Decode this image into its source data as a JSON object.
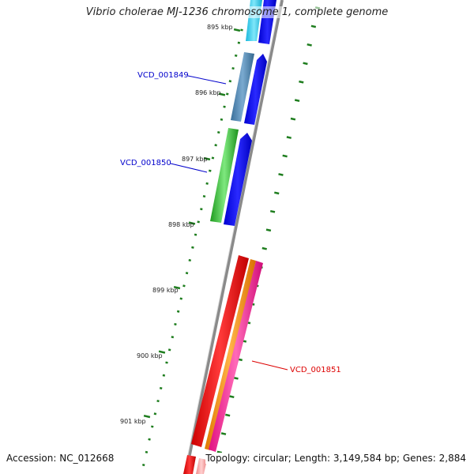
{
  "title": "Vibrio cholerae MJ-1236 chromosome 1, complete genome",
  "footer": {
    "accession": "Accession: NC_012668",
    "summary": "Topology: circular; Length: 3,149,584 bp; Genes: 2,884"
  },
  "ticks": [
    {
      "label": "895 kbp"
    },
    {
      "label": "896 kbp"
    },
    {
      "label": "897 kbp"
    },
    {
      "label": "898 kbp"
    },
    {
      "label": "899 kbp"
    },
    {
      "label": "900 kbp"
    },
    {
      "label": "901 kbp"
    }
  ],
  "gene_labels": [
    {
      "text": "VCD_001849",
      "color": "#0000cc"
    },
    {
      "text": "VCD_001850",
      "color": "#0000cc"
    },
    {
      "text": "VCD_001851",
      "color": "#dd0000"
    }
  ],
  "colors": {
    "backbone": "#8a8a8a",
    "tick_green": "#1e7d1e",
    "forward_cds": "#0000ee",
    "cyan_feature": "#22ccee",
    "steelblue_feature": "#4a86b8",
    "green_feature": "#2eb82e",
    "red_feature": "#ee0000",
    "orange_feature": "#ff8c00",
    "pink_feature": "#ff1493"
  }
}
